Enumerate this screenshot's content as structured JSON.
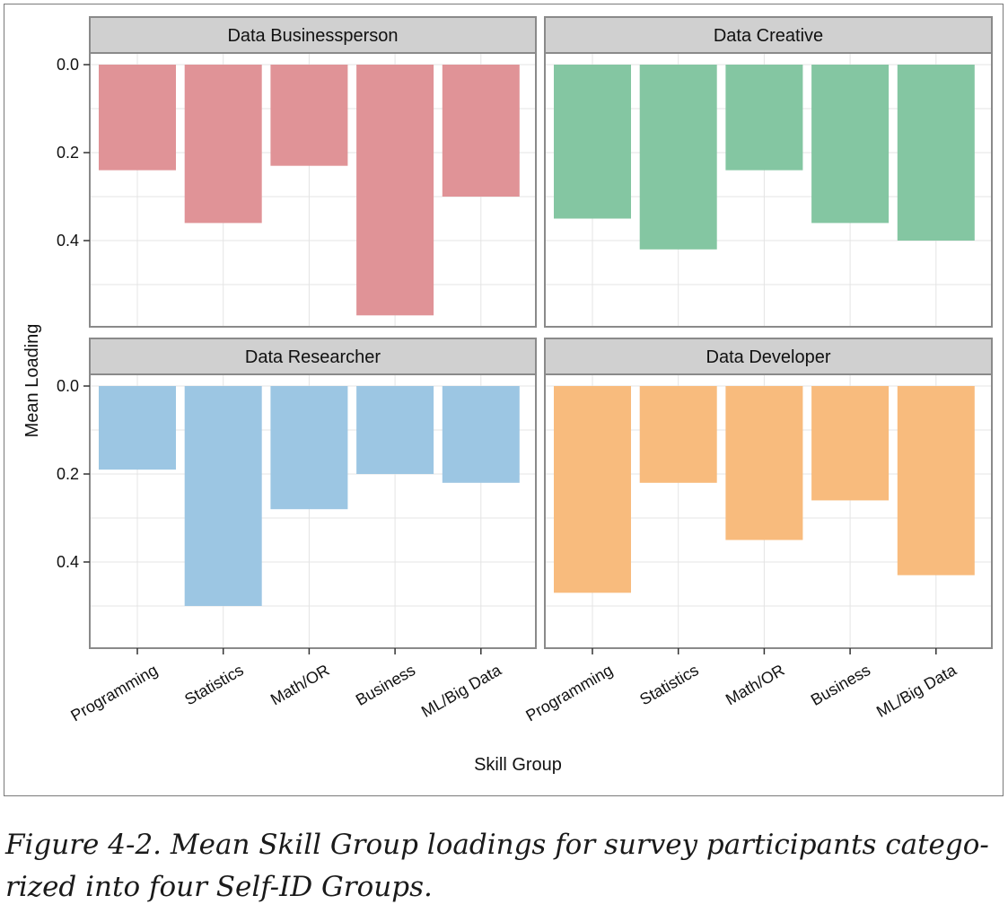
{
  "caption": "Figure 4-2. Mean Skill Group loadings for survey participants catego-rized into four Self-ID Groups.",
  "chart_data": {
    "type": "bar",
    "layout": "facet grid 2x2, y axis reversed (0 at top, bars hang downward)",
    "xlabel": "Skill Group",
    "ylabel": "Mean Loading",
    "categories": [
      "Programming",
      "Statistics",
      "Math/OR",
      "Business",
      "ML/Big Data"
    ],
    "y_ticks": [
      "0.0",
      "0.2",
      "0.4"
    ],
    "ylim": [
      0,
      0.6
    ],
    "y_reversed": true,
    "grid": true,
    "panels": [
      {
        "name": "Data Businessperson",
        "color": "#e09397",
        "values": [
          0.24,
          0.36,
          0.23,
          0.57,
          0.3
        ]
      },
      {
        "name": "Data Creative",
        "color": "#84c6a2",
        "values": [
          0.35,
          0.42,
          0.24,
          0.36,
          0.4
        ]
      },
      {
        "name": "Data Researcher",
        "color": "#9cc6e3",
        "values": [
          0.19,
          0.5,
          0.28,
          0.2,
          0.22
        ]
      },
      {
        "name": "Data Developer",
        "color": "#f8bb7d",
        "values": [
          0.47,
          0.22,
          0.35,
          0.26,
          0.43
        ]
      }
    ]
  }
}
